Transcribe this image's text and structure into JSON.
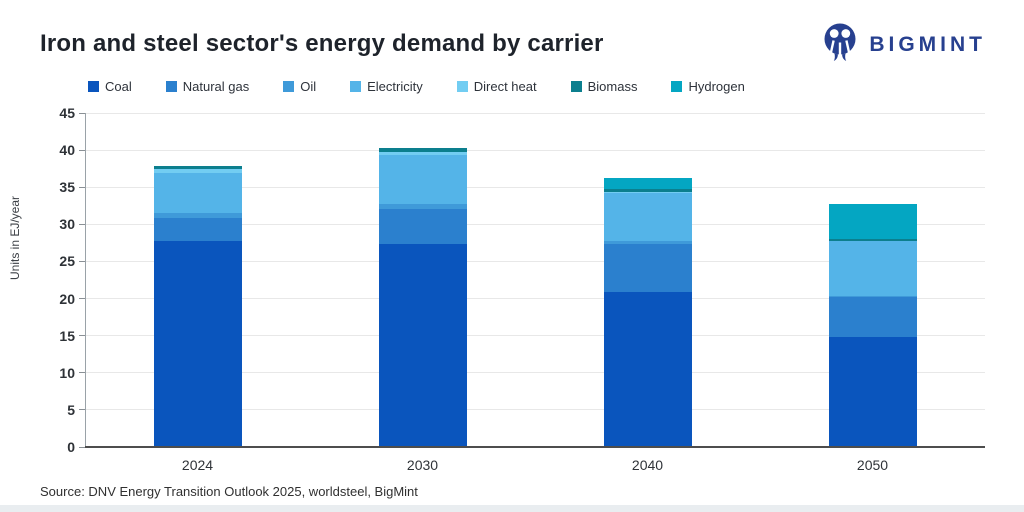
{
  "page": {
    "title": "Iron and steel sector's energy demand by carrier",
    "source": "Source: DNV Energy Transition Outlook 2025, worldsteel, BigMint",
    "brand": {
      "name": "BIGMINT",
      "color": "#27408f"
    }
  },
  "chart_data": {
    "type": "bar",
    "stacked": true,
    "title": "Iron and steel sector's energy demand by carrier",
    "xlabel": "",
    "ylabel": "Units in EJ/year",
    "ylim": [
      0,
      45
    ],
    "ytick_step": 5,
    "grid": true,
    "legend_position": "top",
    "categories": [
      "2024",
      "2030",
      "2040",
      "2050"
    ],
    "series": [
      {
        "name": "Coal",
        "color": "#0a55bd",
        "values": [
          27.8,
          27.4,
          20.9,
          14.8
        ]
      },
      {
        "name": "Natural gas",
        "color": "#2b80ce",
        "values": [
          3.0,
          4.6,
          6.4,
          5.4
        ]
      },
      {
        "name": "Oil",
        "color": "#3f9ad9",
        "values": [
          0.7,
          0.7,
          0.4,
          0.2
        ]
      },
      {
        "name": "Electricity",
        "color": "#54b4e8",
        "values": [
          5.4,
          6.6,
          6.5,
          7.3
        ]
      },
      {
        "name": "Direct heat",
        "color": "#72cdf2",
        "values": [
          0.5,
          0.5,
          0.2,
          0.0
        ]
      },
      {
        "name": "Biomass",
        "color": "#0c7f8e",
        "values": [
          0.5,
          0.5,
          0.3,
          0.3
        ]
      },
      {
        "name": "Hydrogen",
        "color": "#04a6c2",
        "values": [
          0.0,
          0.0,
          1.5,
          4.8
        ]
      }
    ],
    "totals": [
      37.9,
      40.3,
      36.2,
      32.8
    ]
  }
}
